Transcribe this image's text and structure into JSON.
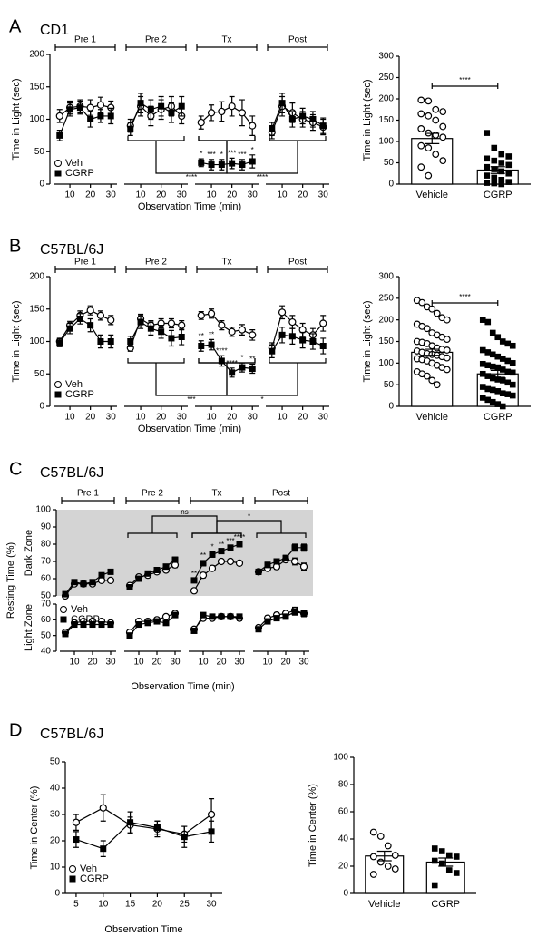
{
  "chart_data": [
    {
      "type": "line",
      "panel": "A",
      "title": "CD1",
      "ylabel": "Time in Light (sec)",
      "xlabel": "Observation Time (min)",
      "segments": [
        "Pre 1",
        "Pre 2",
        "Tx",
        "Post"
      ],
      "x": [
        5,
        10,
        15,
        20,
        25,
        30
      ],
      "xlim": [
        2,
        33
      ],
      "xticks": [
        10,
        20,
        30
      ],
      "ylim": [
        0,
        200
      ],
      "yticks": [
        0,
        50,
        100,
        150,
        200
      ],
      "legend": "lower left",
      "comparisons": [
        "****",
        "****"
      ],
      "series": [
        {
          "name": "Veh",
          "marker": "circle-open",
          "color": "#000000",
          "values": [
            [
              105,
              118,
              120,
              118,
              122,
              118
            ],
            [
              90,
              120,
              105,
              115,
              120,
              105
            ],
            [
              95,
              110,
              112,
              120,
              110,
              90
            ],
            [
              80,
              120,
              110,
              100,
              95,
              88
            ]
          ],
          "errors": [
            [
              10,
              10,
              10,
              12,
              12,
              10
            ],
            [
              10,
              15,
              15,
              15,
              15,
              12
            ],
            [
              10,
              12,
              15,
              15,
              20,
              15
            ],
            [
              10,
              15,
              15,
              12,
              12,
              12
            ]
          ]
        },
        {
          "name": "CGRP",
          "marker": "square-filled",
          "color": "#000000",
          "values": [
            [
              75,
              115,
              118,
              100,
              105,
              105
            ],
            [
              85,
              125,
              115,
              120,
              110,
              120
            ],
            [
              33,
              30,
              30,
              32,
              30,
              35
            ],
            [
              85,
              125,
              100,
              105,
              100,
              90
            ]
          ],
          "errors": [
            [
              8,
              10,
              10,
              12,
              10,
              12
            ],
            [
              10,
              15,
              15,
              15,
              15,
              15
            ],
            [
              6,
              8,
              8,
              8,
              8,
              10
            ],
            [
              10,
              15,
              12,
              12,
              12,
              12
            ]
          ],
          "labels": [
            [
              null,
              null,
              null,
              null,
              null,
              null
            ],
            [
              null,
              null,
              null,
              null,
              null,
              null
            ],
            [
              "*",
              "***",
              "*",
              "***",
              "***",
              "*"
            ],
            [
              null,
              null,
              null,
              null,
              null,
              null
            ]
          ]
        }
      ]
    },
    {
      "type": "bar",
      "ylabel": "Time in Light (sec)",
      "categories": [
        "Vehicle",
        "CGRP"
      ],
      "values": [
        107,
        33
      ],
      "errors": [
        12,
        8
      ],
      "markers": [
        "circle-open",
        "square-filled"
      ],
      "comparison": "****",
      "ylim": [
        0,
        300
      ],
      "yticks": [
        0,
        50,
        100,
        150,
        200,
        250,
        300
      ],
      "points": [
        [
          197,
          195,
          175,
          170,
          165,
          160,
          150,
          135,
          130,
          120,
          115,
          110,
          90,
          85,
          70,
          55,
          40,
          20
        ],
        [
          120,
          85,
          70,
          65,
          60,
          55,
          50,
          45,
          40,
          35,
          30,
          25,
          20,
          15,
          10,
          5,
          3,
          2,
          0
        ]
      ]
    },
    {
      "type": "line",
      "panel": "B",
      "title": "C57BL/6J",
      "ylabel": "Time in Light (sec)",
      "xlabel": "Observation Time (min)",
      "segments": [
        "Pre 1",
        "Pre 2",
        "Tx",
        "Post"
      ],
      "x": [
        5,
        10,
        15,
        20,
        25,
        30
      ],
      "xlim": [
        2,
        33
      ],
      "xticks": [
        10,
        20,
        30
      ],
      "ylim": [
        0,
        200
      ],
      "yticks": [
        0,
        50,
        100,
        150,
        200
      ],
      "legend": "lower left",
      "comparisons": [
        "***",
        "*"
      ],
      "series": [
        {
          "name": "Veh",
          "marker": "circle-open",
          "color": "#000000",
          "values": [
            [
              100,
              125,
              140,
              148,
              140,
              133
            ],
            [
              90,
              135,
              125,
              128,
              128,
              125
            ],
            [
              140,
              143,
              125,
              115,
              118,
              110
            ],
            [
              90,
              145,
              130,
              118,
              110,
              128
            ]
          ],
          "errors": [
            [
              5,
              6,
              7,
              7,
              7,
              7
            ],
            [
              5,
              7,
              7,
              7,
              7,
              7
            ],
            [
              6,
              7,
              7,
              7,
              8,
              8
            ],
            [
              8,
              10,
              10,
              10,
              10,
              12
            ]
          ]
        },
        {
          "name": "CGRP",
          "marker": "square-filled",
          "color": "#000000",
          "values": [
            [
              98,
              120,
              135,
              125,
              100,
              100
            ],
            [
              100,
              130,
              120,
              115,
              105,
              107
            ],
            [
              93,
              95,
              70,
              52,
              60,
              58
            ],
            [
              85,
              110,
              108,
              102,
              100,
              93
            ]
          ],
          "errors": [
            [
              6,
              8,
              8,
              10,
              10,
              10
            ],
            [
              8,
              10,
              10,
              10,
              12,
              12
            ],
            [
              8,
              8,
              8,
              7,
              7,
              7
            ],
            [
              10,
              12,
              12,
              12,
              12,
              12
            ]
          ],
          "labels": [
            [
              null,
              null,
              null,
              null,
              null,
              null
            ],
            [
              null,
              null,
              null,
              null,
              null,
              null
            ],
            [
              "**",
              "**",
              "****",
              "****",
              "*",
              "**"
            ],
            [
              null,
              null,
              null,
              null,
              null,
              null
            ]
          ]
        }
      ]
    },
    {
      "type": "bar",
      "ylabel": "Time in Light (sec)",
      "categories": [
        "Vehicle",
        "CGRP"
      ],
      "values": [
        125,
        75
      ],
      "errors": [
        7,
        8
      ],
      "markers": [
        "circle-open",
        "square-filled"
      ],
      "comparison": "****",
      "ylim": [
        0,
        300
      ],
      "yticks": [
        0,
        50,
        100,
        150,
        200,
        250,
        300
      ],
      "points": [
        [
          245,
          240,
          230,
          225,
          215,
          205,
          200,
          190,
          185,
          180,
          170,
          165,
          160,
          155,
          150,
          148,
          145,
          140,
          135,
          132,
          130,
          128,
          125,
          122,
          120,
          118,
          115,
          112,
          110,
          108,
          105,
          100,
          95,
          90,
          85,
          80,
          75,
          70,
          60,
          50
        ],
        [
          200,
          195,
          170,
          160,
          150,
          145,
          140,
          130,
          125,
          120,
          115,
          110,
          105,
          100,
          98,
          95,
          92,
          90,
          85,
          80,
          78,
          75,
          70,
          65,
          62,
          60,
          55,
          50,
          45,
          40,
          38,
          35,
          30,
          28,
          25,
          20,
          15,
          10,
          5,
          0
        ]
      ]
    },
    {
      "type": "line",
      "panel": "C",
      "title": "C57BL/6J",
      "ylabel": "Resting Time (%)",
      "xlabel": "Observation Time (min)",
      "segments": [
        "Pre 1",
        "Pre 2",
        "Tx",
        "Post"
      ],
      "x": [
        5,
        10,
        15,
        20,
        25,
        30
      ],
      "xlim": [
        2,
        33
      ],
      "xticks": [
        10,
        20,
        30
      ],
      "legend": "upper left",
      "comparisons": [
        "ns",
        "*"
      ],
      "zones": [
        {
          "name": "Dark Zone",
          "ylim": [
            50,
            100
          ],
          "yticks": [
            50,
            60,
            70,
            80,
            90,
            100
          ],
          "background": "#d4d4d4"
        },
        {
          "name": "Light Zone",
          "ylim": [
            40,
            70
          ],
          "yticks": [
            40,
            50,
            60,
            70
          ]
        }
      ],
      "series": [
        {
          "name": "Veh",
          "marker": "circle-open",
          "color": "#000000",
          "values": [
            [
              [
                50,
                57,
                57,
                57,
                59,
                59
              ],
              [
                56,
                61,
                62,
                64,
                65,
                68
              ],
              [
                53,
                62,
                66,
                70,
                70,
                69
              ],
              [
                64,
                66,
                67,
                71,
                70,
                67
              ]
            ],
            [
              [
                52,
                58,
                59,
                59,
                59,
                58
              ],
              [
                52,
                59,
                59,
                60,
                62,
                64
              ],
              [
                54,
                61,
                61,
                62,
                62,
                61
              ],
              [
                55,
                61,
                63,
                64,
                66,
                64
              ]
            ]
          ],
          "errors": [
            [
              [
                1,
                1,
                1,
                1,
                1,
                1
              ],
              [
                1,
                1,
                1,
                1,
                1,
                1.5
              ],
              [
                1,
                1.5,
                1.5,
                1,
                1,
                1
              ],
              [
                1.5,
                1.5,
                1.5,
                1.5,
                2,
                2
              ]
            ],
            [
              [
                1,
                1,
                1,
                1,
                1,
                1
              ],
              [
                1,
                1,
                1,
                1,
                1,
                1
              ],
              [
                1,
                1,
                1,
                1,
                1,
                1.5
              ],
              [
                1,
                1.5,
                1.5,
                1.5,
                2,
                2
              ]
            ]
          ]
        },
        {
          "name": "CGRP",
          "marker": "square-filled",
          "color": "#000000",
          "values": [
            [
              [
                51,
                58,
                57,
                58,
                62,
                64
              ],
              [
                55,
                60,
                63,
                65,
                67,
                71
              ],
              [
                59,
                69,
                74,
                76,
                78,
                80
              ],
              [
                64,
                68,
                70,
                72,
                78,
                78
              ]
            ],
            [
              [
                51,
                57,
                57,
                57,
                57,
                57
              ],
              [
                50,
                57,
                58,
                59,
                58,
                63
              ],
              [
                53,
                63,
                62,
                62,
                62,
                62
              ],
              [
                54,
                59,
                61,
                62,
                65,
                64
              ]
            ]
          ],
          "errors": [
            [
              [
                1,
                1,
                1,
                1,
                1,
                1
              ],
              [
                1,
                1,
                1,
                1,
                1,
                1.5
              ],
              [
                1,
                1.5,
                1.5,
                1,
                1,
                1
              ],
              [
                1.5,
                1.5,
                1.5,
                1.5,
                2,
                2
              ]
            ],
            [
              [
                1,
                1,
                1,
                1,
                1,
                1
              ],
              [
                1,
                1,
                1,
                1,
                1.5,
                1.5
              ],
              [
                1,
                1,
                1,
                1,
                1,
                1.5
              ],
              [
                1,
                1.5,
                1.5,
                1.5,
                2,
                2
              ]
            ]
          ],
          "labels": [
            [
              [
                null,
                null,
                null,
                null,
                null,
                null
              ],
              [
                null,
                null,
                null,
                null,
                null,
                null
              ],
              [
                "**",
                "**",
                "*",
                "**",
                "***",
                "****"
              ],
              [
                null,
                null,
                null,
                null,
                null,
                null
              ]
            ]
          ]
        }
      ]
    },
    {
      "type": "line",
      "panel": "D",
      "title": "C57BL/6J",
      "ylabel": "Time in Center (%)",
      "xlabel": "Observation Time",
      "x": [
        5,
        10,
        15,
        20,
        25,
        30
      ],
      "xlim": [
        3,
        32
      ],
      "xticks": [
        5,
        10,
        15,
        20,
        25,
        30
      ],
      "ylim": [
        0,
        50
      ],
      "yticks": [
        0,
        10,
        20,
        30,
        40,
        50
      ],
      "legend": "lower left",
      "series": [
        {
          "name": "Veh",
          "marker": "circle-open",
          "color": "#000000",
          "values": [
            27,
            32.5,
            26,
            24.5,
            22.5,
            30
          ],
          "errors": [
            3,
            5,
            3,
            3,
            3,
            6
          ]
        },
        {
          "name": "CGRP",
          "marker": "square-filled",
          "color": "#000000",
          "values": [
            20.5,
            17,
            27,
            25,
            21.5,
            23.5
          ],
          "errors": [
            3,
            3,
            4,
            2.5,
            4,
            4
          ]
        }
      ]
    },
    {
      "type": "bar",
      "ylabel": "Time in Center (%)",
      "categories": [
        "Vehicle",
        "CGRP"
      ],
      "values": [
        27.5,
        23
      ],
      "errors": [
        3.5,
        3
      ],
      "markers": [
        "circle-open",
        "square-filled"
      ],
      "ylim": [
        0,
        100
      ],
      "yticks": [
        0,
        20,
        40,
        60,
        80,
        100
      ],
      "points": [
        [
          45,
          42,
          35,
          28,
          27,
          23,
          20,
          18,
          14
        ],
        [
          33,
          31,
          28,
          27,
          24,
          22,
          17,
          15,
          6
        ]
      ]
    }
  ]
}
